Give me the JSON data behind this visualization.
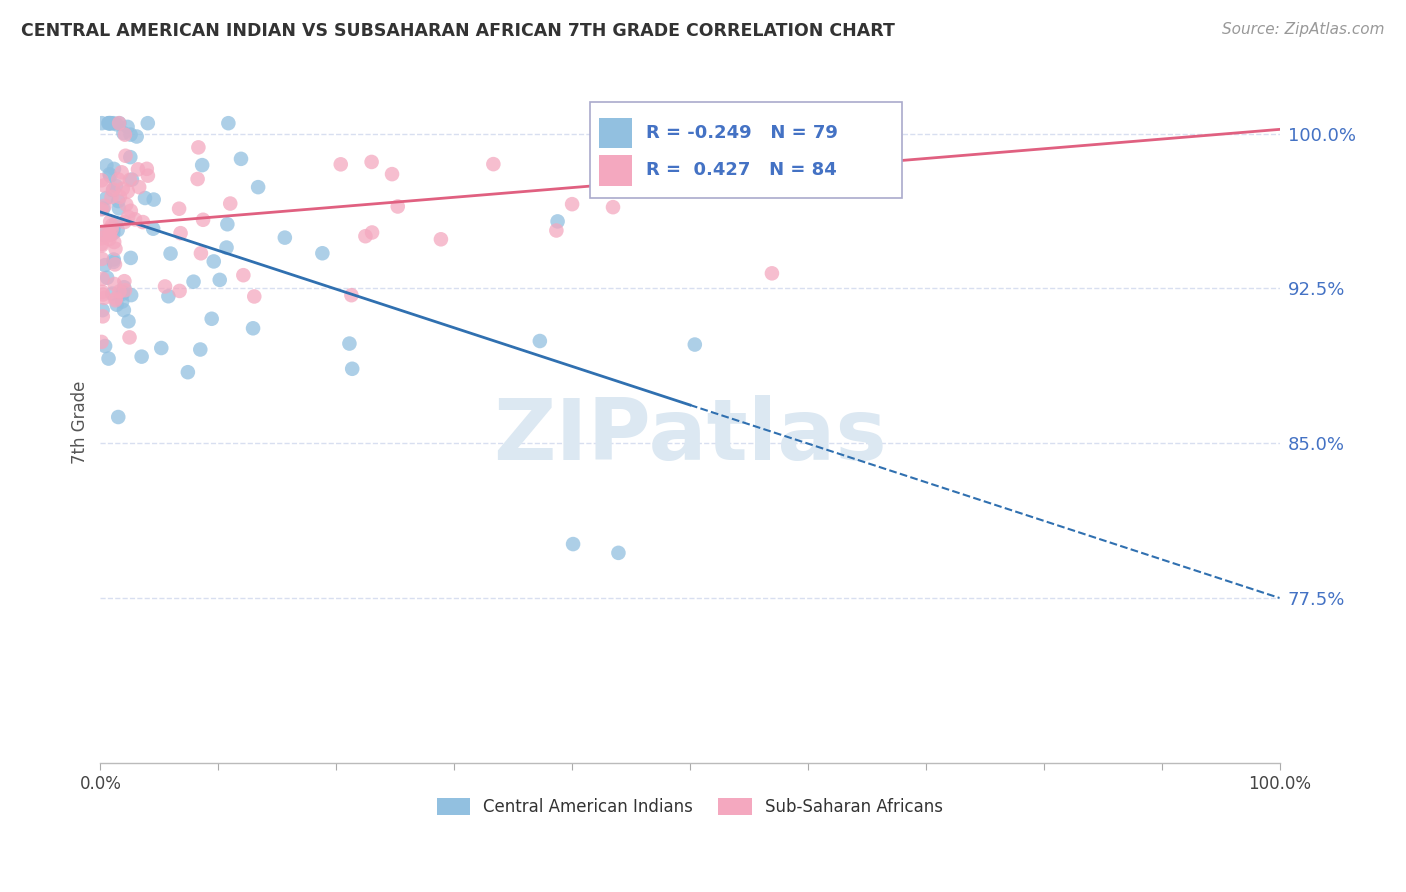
{
  "title": "CENTRAL AMERICAN INDIAN VS SUBSAHARAN AFRICAN 7TH GRADE CORRELATION CHART",
  "source": "Source: ZipAtlas.com",
  "ylabel": "7th Grade",
  "y_ticks": [
    0.775,
    0.85,
    0.925,
    1.0
  ],
  "y_tick_labels": [
    "77.5%",
    "85.0%",
    "92.5%",
    "100.0%"
  ],
  "x_lim": [
    0.0,
    1.0
  ],
  "y_lim": [
    0.695,
    1.025
  ],
  "legend_blue_label": "Central American Indians",
  "legend_pink_label": "Sub-Saharan Africans",
  "R_blue": -0.249,
  "N_blue": 79,
  "R_pink": 0.427,
  "N_pink": 84,
  "blue_color": "#92c0e0",
  "pink_color": "#f4a8bf",
  "blue_line_color": "#3070b0",
  "pink_line_color": "#e06080",
  "watermark": "ZIPatlas",
  "watermark_color": "#dce8f2",
  "grid_color": "#d8dff0",
  "background_color": "#ffffff",
  "text_color_blue": "#4472c4",
  "text_color_title": "#333333",
  "blue_trend_start_y": 0.962,
  "blue_trend_end_y": 0.775,
  "pink_trend_start_y": 0.955,
  "pink_trend_end_y": 1.002
}
